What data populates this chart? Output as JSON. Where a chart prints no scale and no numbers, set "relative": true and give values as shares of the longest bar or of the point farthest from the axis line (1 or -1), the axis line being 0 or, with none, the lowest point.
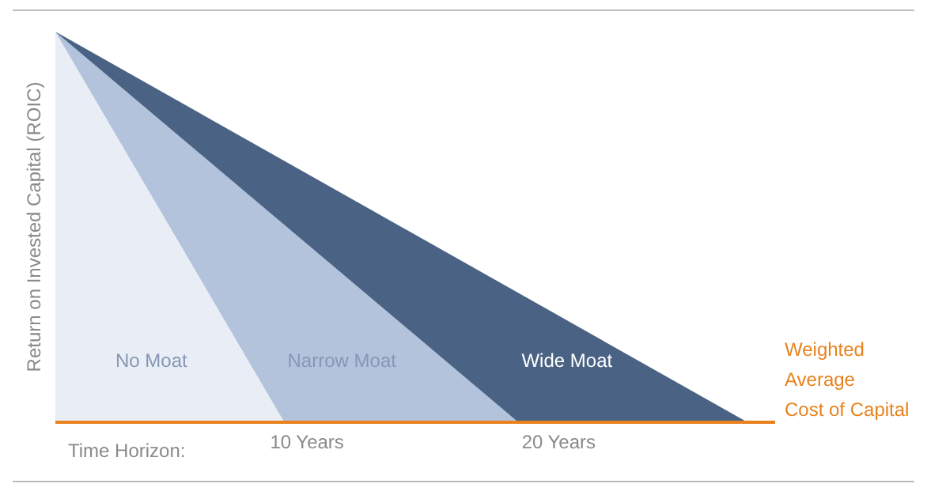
{
  "chart_data": {
    "type": "area",
    "relative": true,
    "xlabel": "Time Horizon:",
    "ylabel": "Return on Invested Capital (ROIC)",
    "xlim": [
      0,
      28.6
    ],
    "xticks": [
      {
        "value": 10,
        "label": "10 Years"
      },
      {
        "value": 20,
        "label": "20 Years"
      }
    ],
    "tick_labels": "x",
    "legend": false,
    "series": [
      {
        "name": "No Moat",
        "color": "#e9eef6",
        "x": [
          0,
          9.1
        ],
        "values": [
          1,
          0
        ]
      },
      {
        "name": "Narrow Moat",
        "color": "#b3c3dc",
        "x": [
          0,
          18.4
        ],
        "values": [
          1,
          0
        ]
      },
      {
        "name": "Wide Moat",
        "color": "#4a6283",
        "x": [
          0,
          27.5
        ],
        "values": [
          1,
          0
        ]
      }
    ],
    "annotations": [
      "Weighted\nAverage\nCost of Capital"
    ]
  }
}
